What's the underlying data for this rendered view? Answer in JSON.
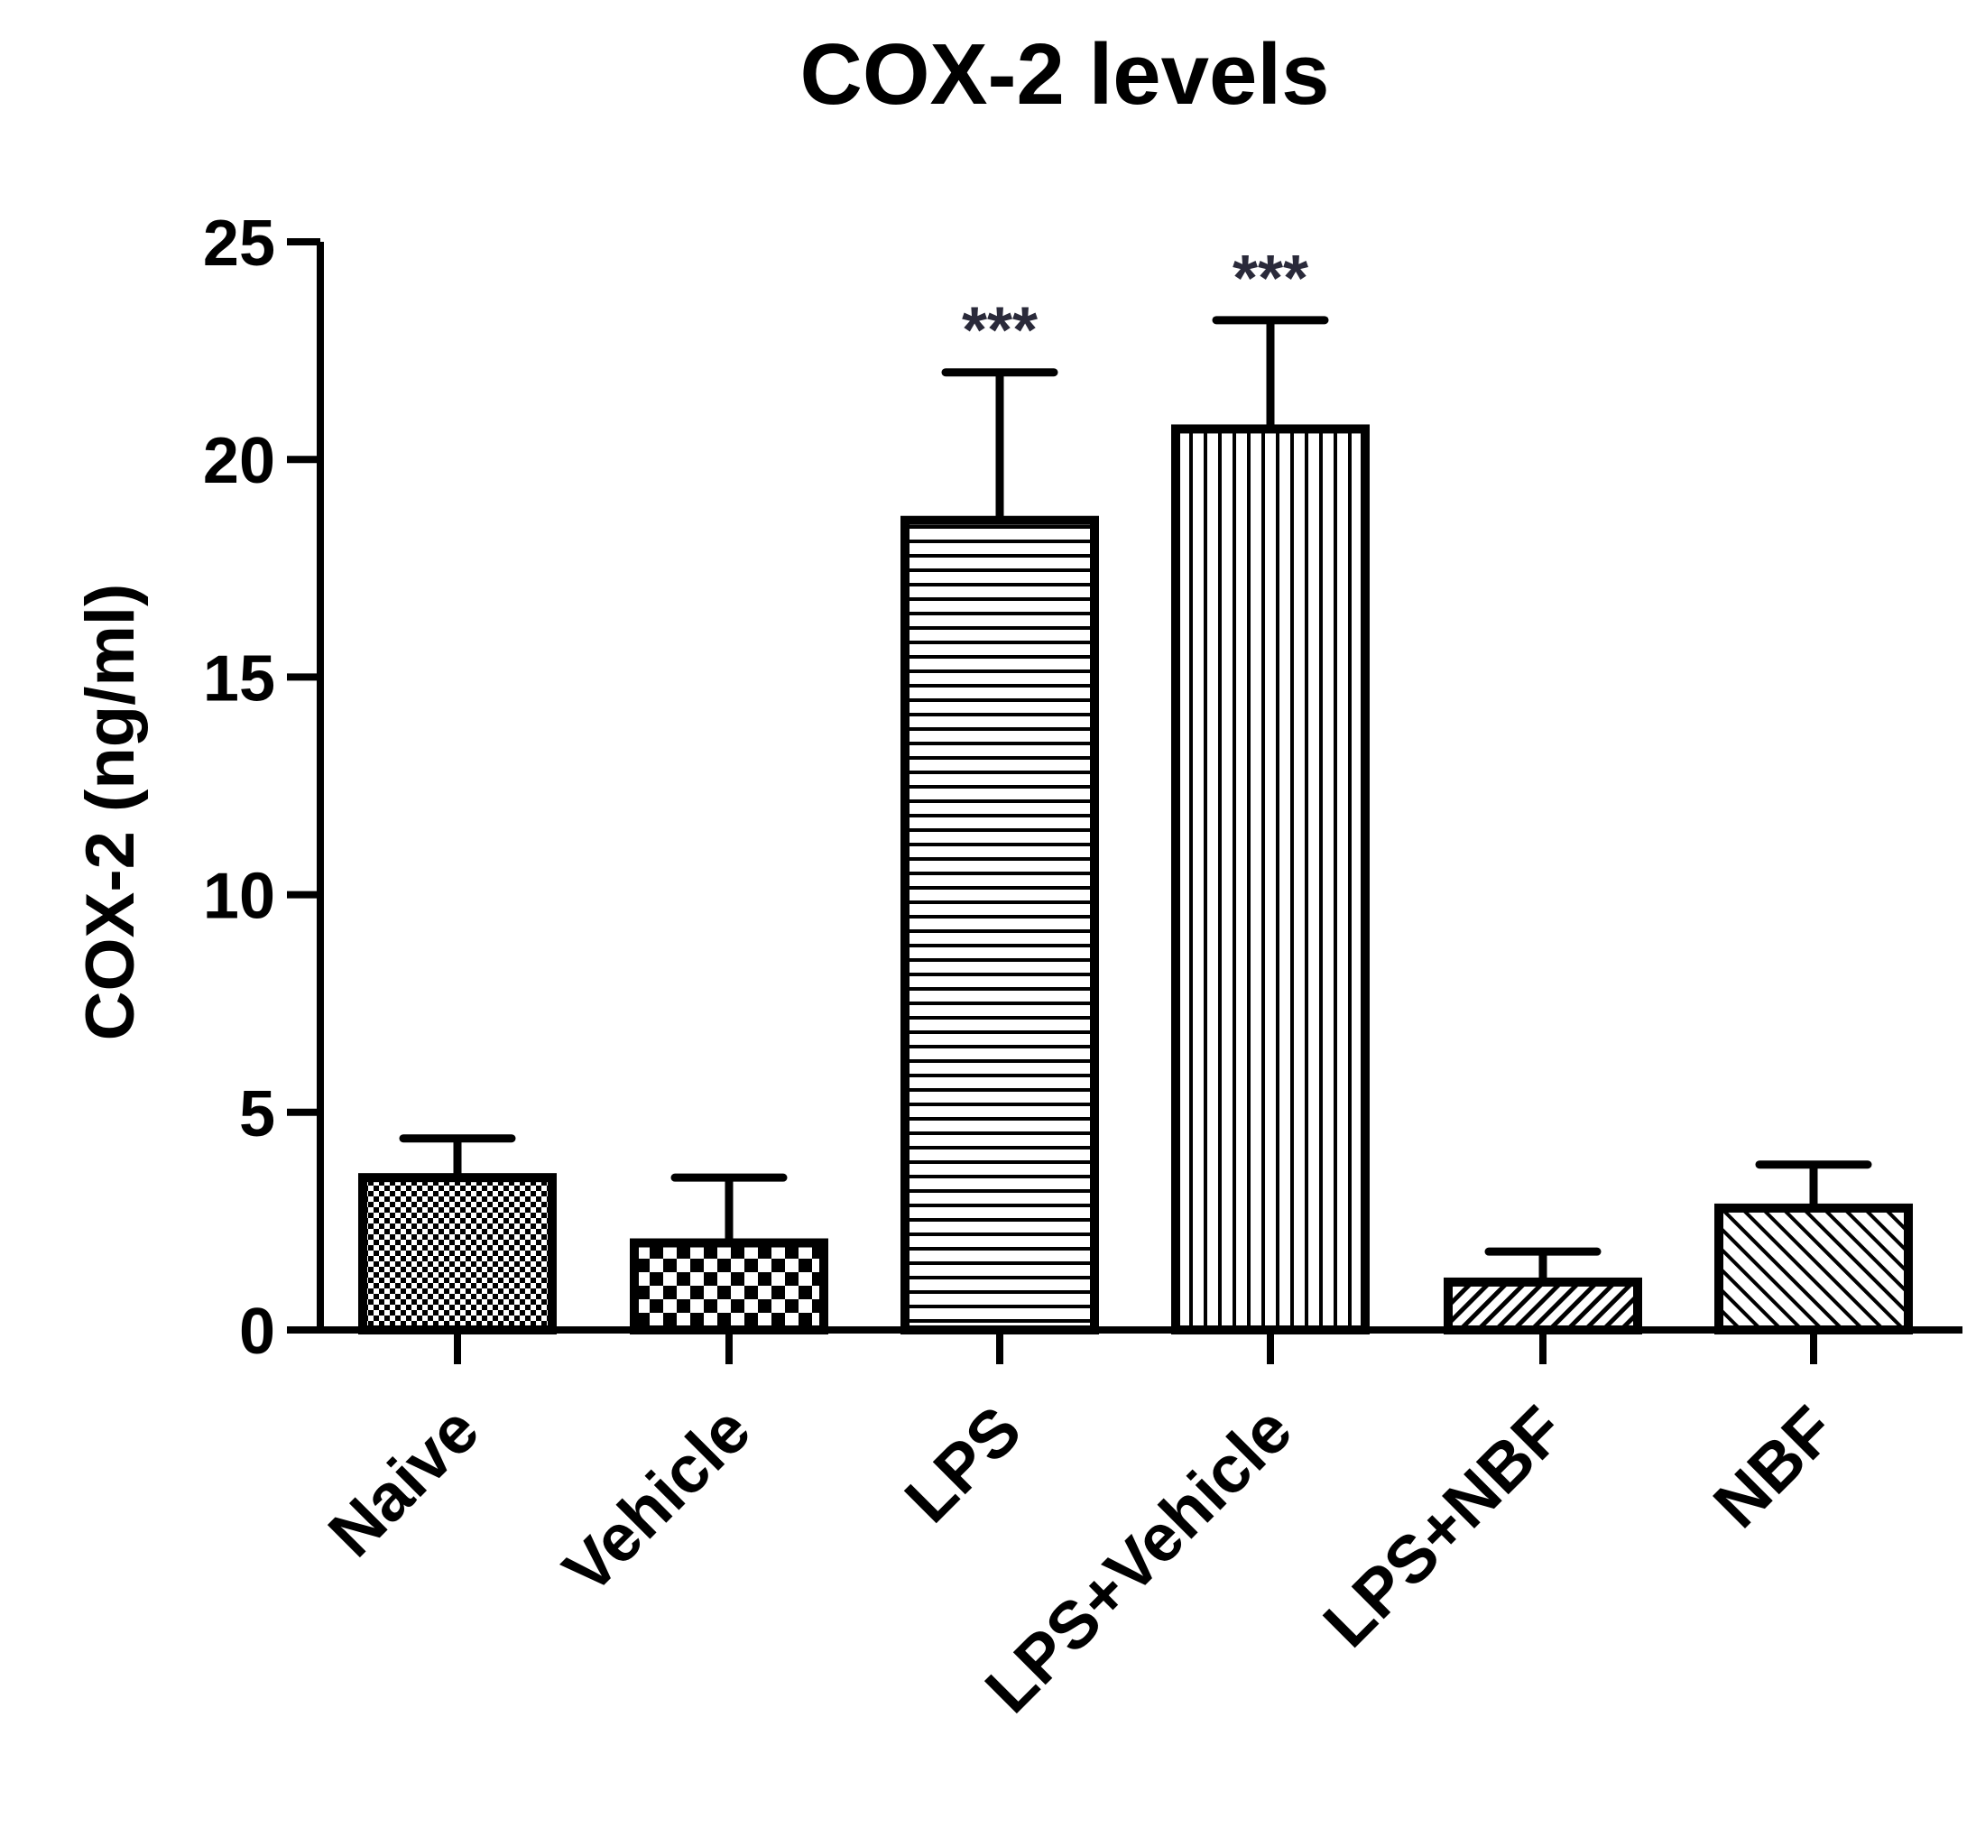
{
  "chart_data": {
    "type": "bar",
    "title": "COX-2 levels",
    "xlabel": "",
    "ylabel": "COX-2 (ng/ml)",
    "ylim": [
      0,
      25
    ],
    "yticks": [
      0,
      5,
      10,
      15,
      20,
      25
    ],
    "grid": false,
    "categories": [
      "Naive",
      "Vehicle",
      "LPS",
      "LPS+Vehicle",
      "LPS+NBF",
      "NBF"
    ],
    "values": [
      3.5,
      2.0,
      18.6,
      20.7,
      1.1,
      2.8
    ],
    "error_upper": [
      4.4,
      3.5,
      22.0,
      23.2,
      1.8,
      3.8
    ],
    "significance": [
      "",
      "",
      "***",
      "***",
      "",
      ""
    ],
    "patterns": [
      "fine-checker",
      "checker",
      "horizontal-lines",
      "vertical-lines",
      "diagonal-fine",
      "diagonal"
    ],
    "colors": {
      "bar_stroke": "#000000",
      "axis": "#000000",
      "text": "#000000",
      "significance": "#2a2a3a"
    }
  }
}
